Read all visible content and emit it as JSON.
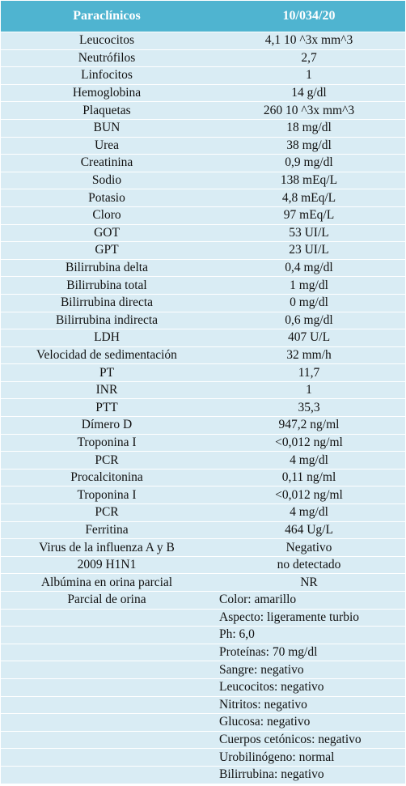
{
  "header": [
    "Paraclínicos",
    "10/034/20"
  ],
  "rows": [
    [
      "Leucocitos",
      "4,1 10 ^3x mm^3"
    ],
    [
      "Neutrófilos",
      "2,7"
    ],
    [
      "Linfocitos",
      "1"
    ],
    [
      "Hemoglobina",
      "14 g/dl"
    ],
    [
      "Plaquetas",
      "260 10 ^3x mm^3"
    ],
    [
      "BUN",
      "18 mg/dl"
    ],
    [
      "Urea",
      "38 mg/dl"
    ],
    [
      "Creatinina",
      "0,9 mg/dl"
    ],
    [
      "Sodio",
      "138 mEq/L"
    ],
    [
      "Potasio",
      "4,8 mEq/L"
    ],
    [
      "Cloro",
      "97 mEq/L"
    ],
    [
      "GOT",
      "53 UI/L"
    ],
    [
      "GPT",
      "23 UI/L"
    ],
    [
      "Bilirrubina delta",
      "0,4 mg/dl"
    ],
    [
      "Bilirrubina total",
      "1 mg/dl"
    ],
    [
      "Bilirrubina directa",
      "0 mg/dl"
    ],
    [
      "Bilirrubina indirecta",
      "0,6 mg/dl"
    ],
    [
      "LDH",
      "407 U/L"
    ],
    [
      "Velocidad de sedimentación",
      "32 mm/h"
    ],
    [
      "PT",
      "11,7"
    ],
    [
      "INR",
      "1"
    ],
    [
      "PTT",
      "35,3"
    ],
    [
      "Dímero D",
      "947,2 ng/ml"
    ],
    [
      "Troponina I",
      "<0,012 ng/ml"
    ],
    [
      "PCR",
      "4 mg/dl"
    ],
    [
      "Procalcitonina",
      "0,11 ng/ml"
    ],
    [
      "Troponina I",
      "<0,012 ng/ml"
    ],
    [
      "PCR",
      "4 mg/dl"
    ],
    [
      "Ferritina",
      "464 Ug/L"
    ],
    [
      "Virus de la influenza A y B",
      "Negativo"
    ],
    [
      "2009 H1N1",
      "no detectado"
    ],
    [
      "Albúmina en orina parcial",
      "NR"
    ]
  ],
  "urine": {
    "label": "Parcial de orina",
    "items": [
      "Color: amarillo",
      "Aspecto: ligeramente turbio",
      "Ph: 6,0",
      "Proteínas: 70 mg/dl",
      "Sangre: negativo",
      "Leucocitos: negativo",
      "Nitritos: negativo",
      "Glucosa: negativo",
      "Cuerpos cetónicos: negativo",
      "Urobilinógeno: normal",
      "Bilirrubina: negativo"
    ]
  }
}
